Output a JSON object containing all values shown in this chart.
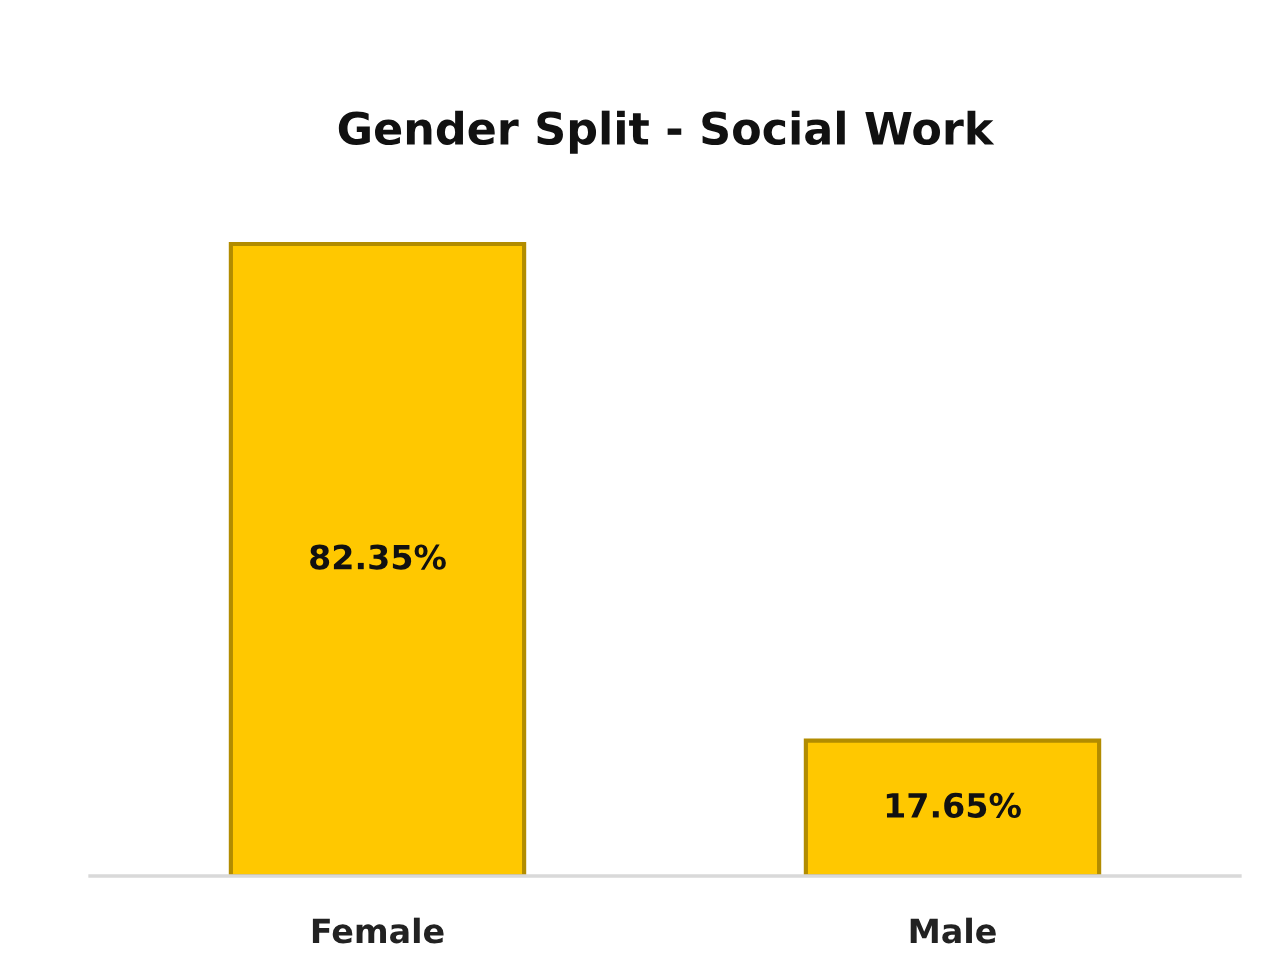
{
  "chart_data": {
    "type": "bar",
    "title": "Gender Split - Social Work",
    "categories": [
      "Female",
      "Male"
    ],
    "values": [
      82.35,
      17.65
    ],
    "color": "#ffc800",
    "value_labels": [
      "82.35%",
      "17.65%"
    ]
  }
}
